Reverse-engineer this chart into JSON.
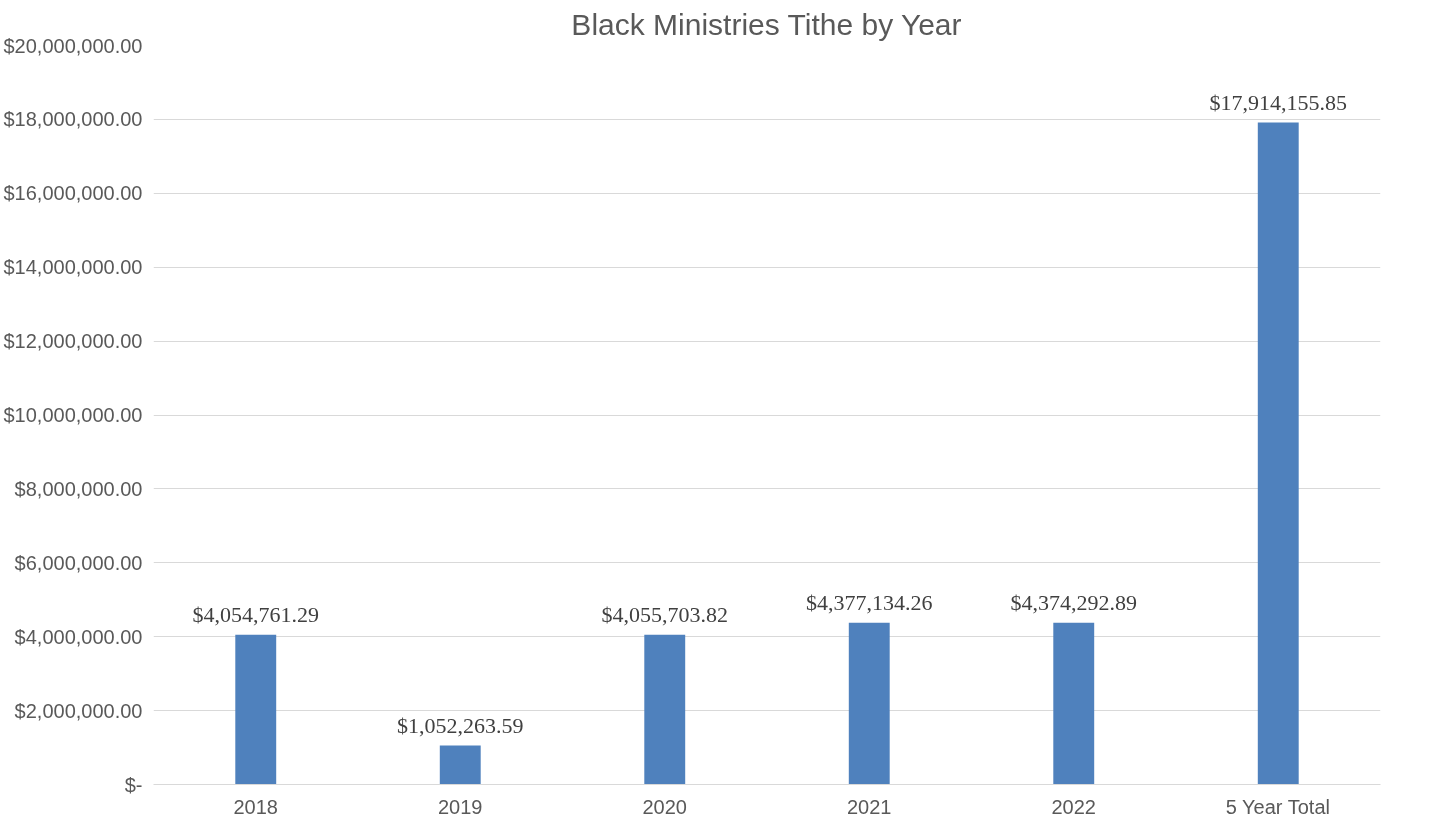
{
  "chart_data": {
    "type": "bar",
    "title": "Black Ministries Tithe by Year",
    "categories": [
      "2018",
      "2019",
      "2020",
      "2021",
      "2022",
      "5 Year Total"
    ],
    "values": [
      4054761.29,
      1052263.59,
      4055703.82,
      4377134.26,
      4374292.89,
      17914155.85
    ],
    "value_labels": [
      "$4,054,761.29",
      "$1,052,263.59",
      "$4,055,703.82",
      "$4,377,134.26",
      "$4,374,292.89",
      "$17,914,155.85"
    ],
    "color": "#4f81bd",
    "ylim": [
      0,
      20000000
    ],
    "yticks": [
      {
        "value": 0,
        "label": "$-"
      },
      {
        "value": 2000000,
        "label": "$2,000,000.00"
      },
      {
        "value": 4000000,
        "label": "$4,000,000.00"
      },
      {
        "value": 6000000,
        "label": "$6,000,000.00"
      },
      {
        "value": 8000000,
        "label": "$8,000,000.00"
      },
      {
        "value": 10000000,
        "label": "$10,000,000.00"
      },
      {
        "value": 12000000,
        "label": "$12,000,000.00"
      },
      {
        "value": 14000000,
        "label": "$14,000,000.00"
      },
      {
        "value": 16000000,
        "label": "$16,000,000.00"
      },
      {
        "value": 18000000,
        "label": "$18,000,000.00"
      },
      {
        "value": 20000000,
        "label": "$20,000,000.00"
      }
    ],
    "grid": "y"
  }
}
